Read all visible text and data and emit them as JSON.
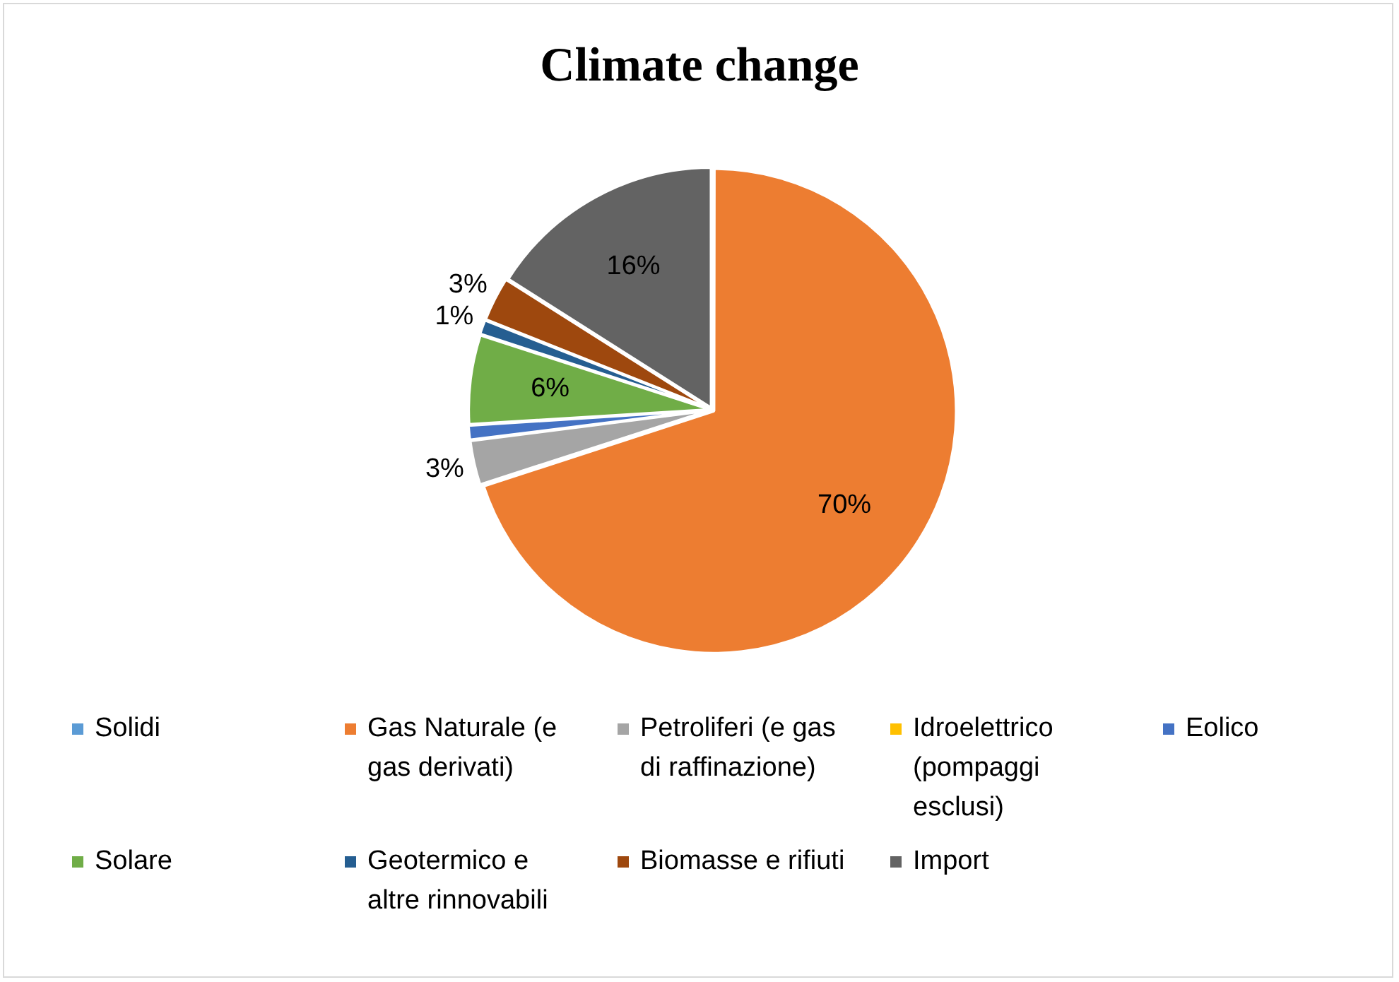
{
  "chart_data": {
    "type": "pie",
    "title": "Climate change",
    "categories": [
      "Solidi",
      "Gas Naturale (e gas derivati)",
      "Petroliferi (e gas di raffinazione)",
      "Idroelettrico (pompaggi esclusi)",
      "Eolico",
      "Solare",
      "Geotermico e altre rinnovabili",
      "Biomasse e rifiuti",
      "Import"
    ],
    "values": [
      0,
      70,
      3,
      0,
      1,
      6,
      1,
      3,
      16
    ],
    "value_labels": [
      null,
      "70%",
      "3%",
      null,
      null,
      "6%",
      "1%",
      "3%",
      "16%"
    ],
    "colors": [
      "#5b9bd5",
      "#ed7d31",
      "#a5a5a5",
      "#ffc000",
      "#4472c4",
      "#70ad47",
      "#255e91",
      "#9e480e",
      "#636363"
    ],
    "legend": "bottom"
  }
}
